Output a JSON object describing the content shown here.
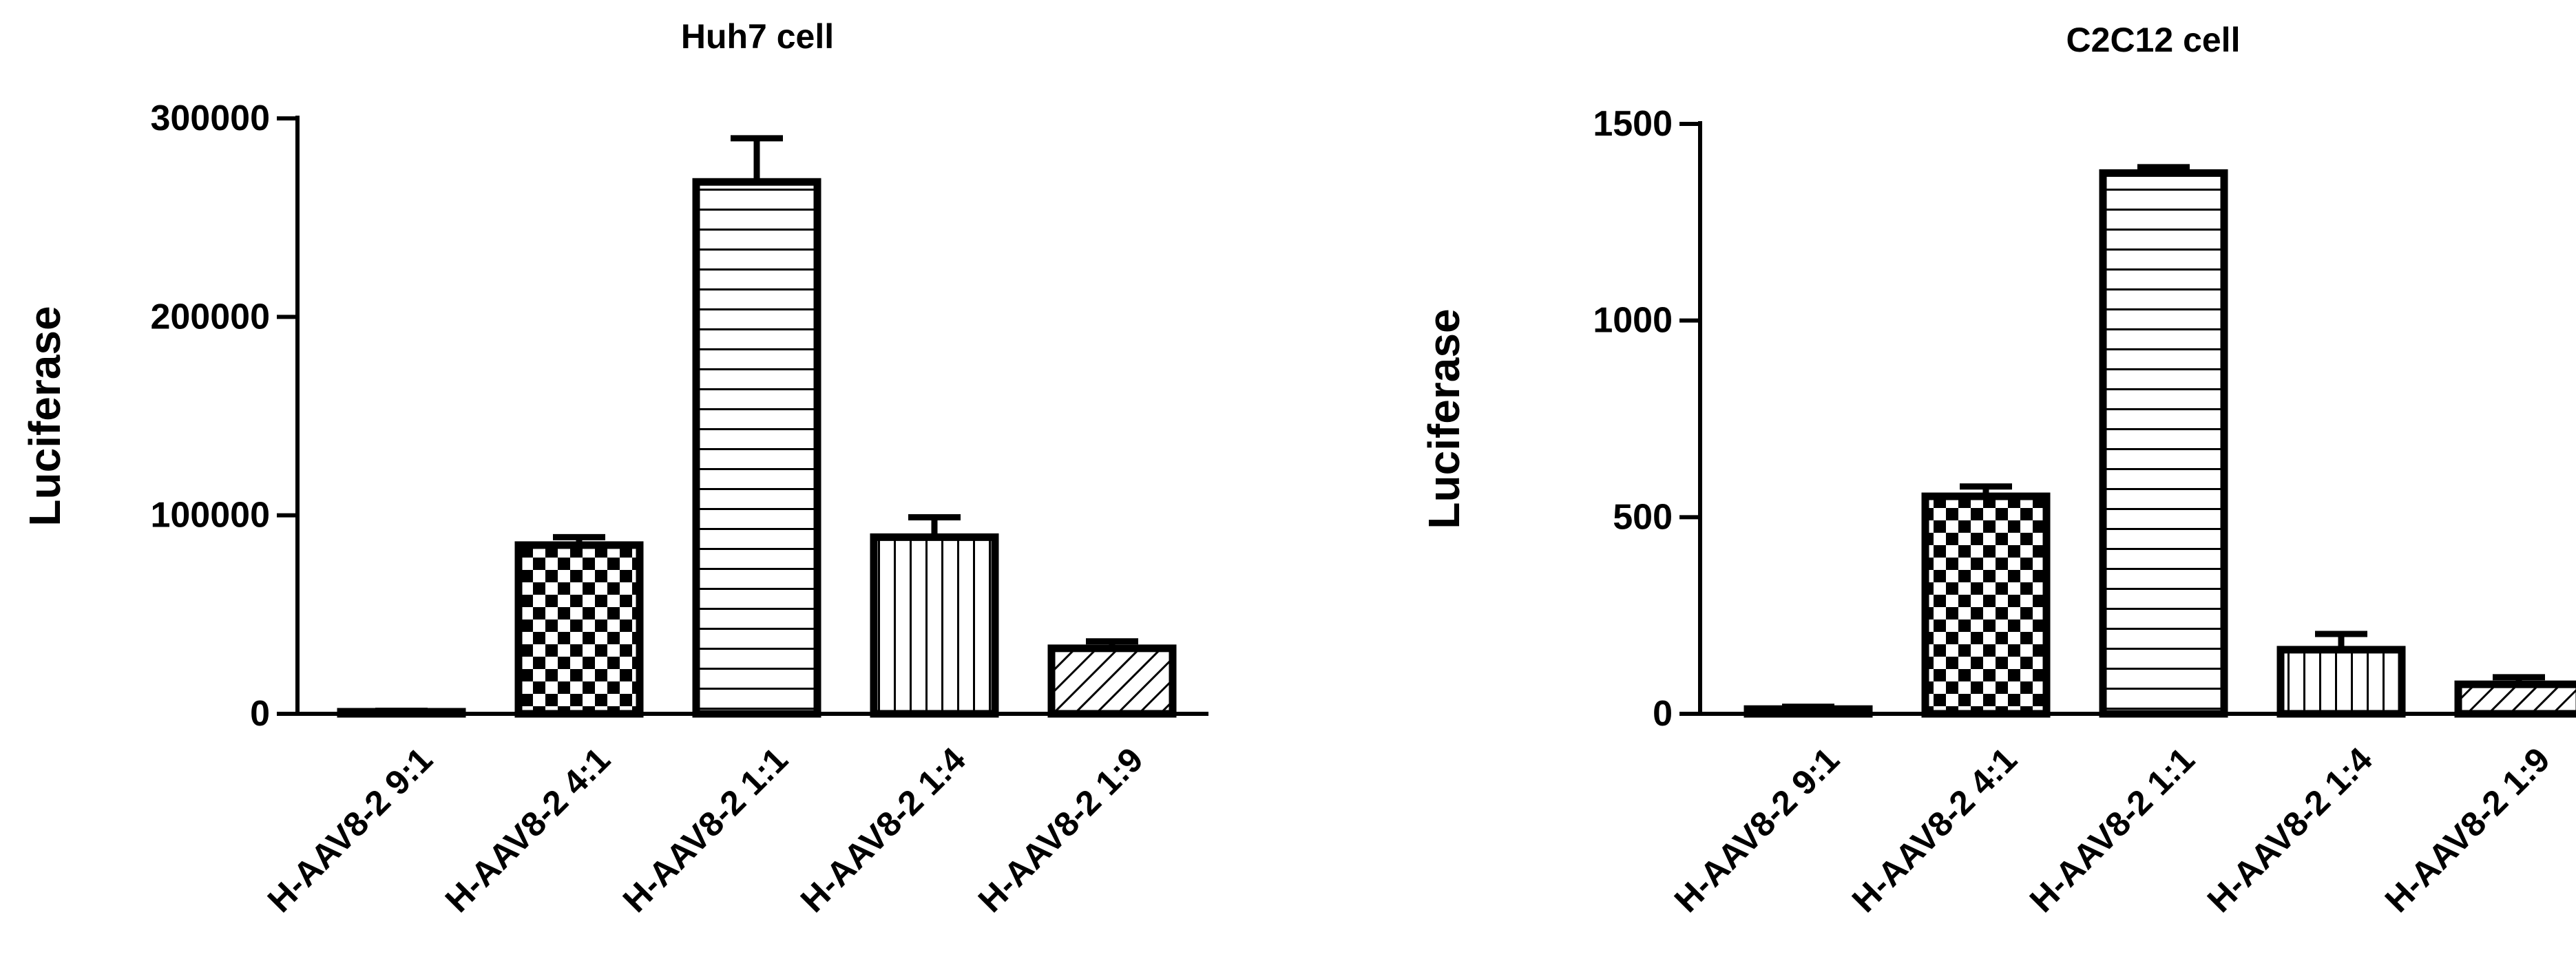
{
  "chart_data": [
    {
      "type": "bar",
      "title": "Huh7 cell",
      "ylabel": "Luciferase",
      "xlabel": "",
      "ylim": [
        0,
        300000
      ],
      "yticks": [
        0,
        100000,
        200000,
        300000
      ],
      "ytick_labels": [
        "0",
        "100000",
        "200000",
        "300000"
      ],
      "categories": [
        "H-AAV8-2 9:1",
        "H-AAV8-2 4:1",
        "H-AAV8-2 1:1",
        "H-AAV8-2 1:4",
        "H-AAV8-2 1:9"
      ],
      "values": [
        1000,
        85000,
        268000,
        89000,
        33000
      ],
      "errors": [
        500,
        4000,
        22000,
        10000,
        3500
      ],
      "patterns": [
        "solid",
        "checker",
        "horizontal-lines",
        "vertical-lines",
        "diagonal-lines"
      ],
      "grid": false,
      "error_bars": "upper"
    },
    {
      "type": "bar",
      "title": "C2C12 cell",
      "ylabel": "Luciferase",
      "xlabel": "",
      "ylim": [
        0,
        1500
      ],
      "yticks": [
        0,
        500,
        1000,
        1500
      ],
      "ytick_labels": [
        "0",
        "500",
        "1000",
        "1500"
      ],
      "categories": [
        "H-AAV8-2 9:1",
        "H-AAV8-2 4:1",
        "H-AAV8-2 1:1",
        "H-AAV8-2 1:4",
        "H-AAV8-2 1:9"
      ],
      "values": [
        12,
        553,
        1375,
        163,
        75
      ],
      "errors": [
        6,
        25,
        15,
        40,
        18
      ],
      "patterns": [
        "solid",
        "checker",
        "horizontal-lines",
        "vertical-lines",
        "diagonal-lines"
      ],
      "grid": false,
      "error_bars": "upper"
    }
  ]
}
